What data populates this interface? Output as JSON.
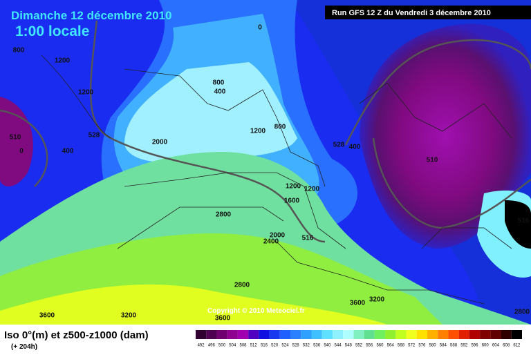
{
  "header": {
    "date": "Dimanche 12 décembre 2010",
    "time": "1:00 locale",
    "run": "Run GFS 12 Z du Vendredi 3 décembre 2010"
  },
  "map": {
    "copyright": "Copyright © 2010 Meteociel.fr",
    "labels": [
      "0",
      "800",
      "1200",
      "1200",
      "800",
      "400",
      "510",
      "528",
      "0",
      "400",
      "1200",
      "800",
      "2000",
      "528",
      "400",
      "510",
      "1200",
      "1200",
      "1600",
      "2800",
      "2000",
      "2400",
      "516",
      "2800",
      "3600",
      "3200",
      "3600",
      "3200",
      "3600",
      "2800",
      "516"
    ]
  },
  "legend": {
    "title": "Iso 0°(m) et z500-z1000 (dam)",
    "lead": "(+ 204h)",
    "ticks": [
      492,
      496,
      500,
      504,
      508,
      512,
      516,
      520,
      524,
      528,
      532,
      536,
      540,
      544,
      548,
      552,
      556,
      560,
      564,
      568,
      572,
      576,
      580,
      584,
      588,
      592,
      596,
      600,
      604,
      608,
      612
    ]
  }
}
